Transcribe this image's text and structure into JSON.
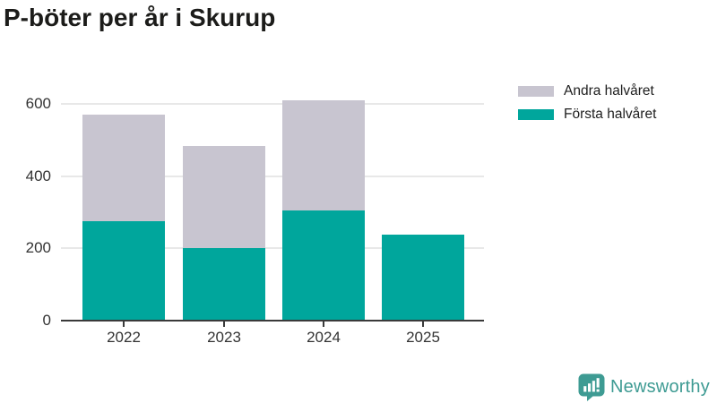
{
  "title": "P-böter per år i Skurup",
  "colors": {
    "forsta_teal": "#00a69c",
    "andra_gray": "#c8c5d0",
    "grid": "#e8e8e8",
    "axis": "#3a3a3a",
    "tick_label": "#333333",
    "title_text": "#1c1c1a",
    "logo_teal": "#3e9b93"
  },
  "legend": {
    "items": [
      {
        "label": "Andra halvåret",
        "color": "#c8c5d0"
      },
      {
        "label": "Första halvåret",
        "color": "#00a69c"
      }
    ]
  },
  "chart_data": {
    "type": "bar",
    "stacked": true,
    "title": "P-böter per år i Skurup",
    "categories": [
      "2022",
      "2023",
      "2024",
      "2025"
    ],
    "series": [
      {
        "name": "Första halvåret",
        "color": "#00a69c",
        "values": [
          275,
          202,
          304,
          237
        ]
      },
      {
        "name": "Andra halvåret",
        "color": "#c8c5d0",
        "values": [
          295,
          281,
          306,
          0
        ]
      }
    ],
    "totals": [
      570,
      483,
      610,
      237
    ],
    "xlabel": "",
    "ylabel": "",
    "ylim": [
      0,
      660
    ],
    "yticks": [
      0,
      200,
      400,
      600
    ],
    "grid": true,
    "legend_position": "top-right"
  },
  "branding": {
    "logo_text": "Newsworthy",
    "logo_icon": "bar-chart-speech-bubble-icon"
  }
}
